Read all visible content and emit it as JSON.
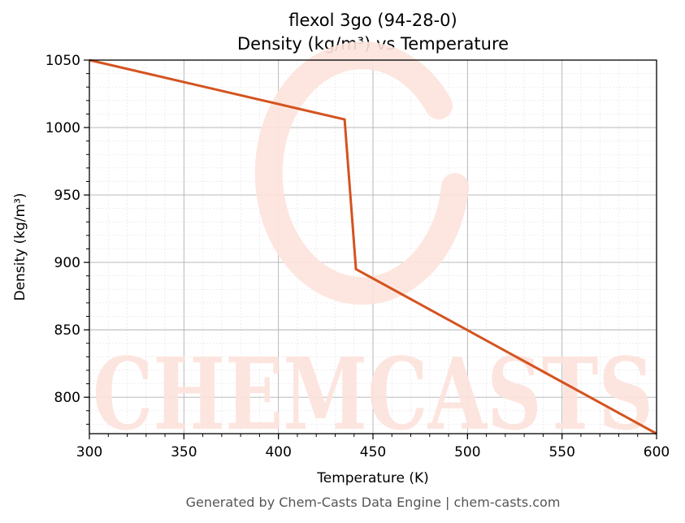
{
  "title": {
    "line1": "flexol 3go (94-28-0)",
    "line2": "Density (kg/m³) vs Temperature"
  },
  "footer": "Generated by Chem-Casts Data Engine | chem-casts.com",
  "watermark": {
    "text": "CHEMCASTS",
    "color": "#fde3dc"
  },
  "colors": {
    "line": "#d4531f",
    "grid_major": "#b0b0b0",
    "grid_minor": "#e3e3e3"
  },
  "chart_data": {
    "type": "line",
    "xlabel": "Temperature (K)",
    "ylabel": "Density (kg/m³)",
    "xlim": [
      300,
      600
    ],
    "ylim": [
      773,
      1050
    ],
    "xticks": [
      300,
      350,
      400,
      450,
      500,
      550,
      600
    ],
    "yticks": [
      800,
      850,
      900,
      950,
      1000,
      1050
    ],
    "grid": true,
    "series": [
      {
        "x": [
          300,
          435,
          441,
          600
        ],
        "y": [
          1050,
          1006,
          895,
          773
        ]
      }
    ]
  }
}
